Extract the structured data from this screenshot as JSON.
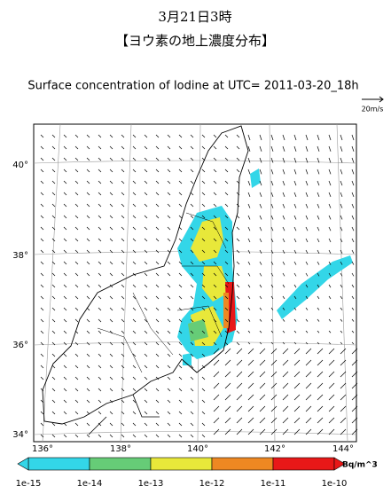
{
  "header": {
    "title": "3月21日3時",
    "subtitle": "【ヨウ素の地上濃度分布】"
  },
  "map": {
    "title": "Surface concentration of Iodine at UTC= 2011-03-20_18h",
    "wind_scale": "20m/s",
    "lat_ticks": [
      "40°",
      "38°",
      "36°",
      "34°"
    ],
    "lon_ticks": [
      "136°",
      "138°",
      "140°",
      "142°",
      "144°"
    ]
  },
  "colorbar": {
    "unit": "Bq/m^3",
    "labels": [
      "1e-15",
      "1e-14",
      "1e-13",
      "1e-12",
      "1e-11",
      "1e-10"
    ],
    "colors": [
      "#33d6e8",
      "#66cc77",
      "#e8e83a",
      "#ee8822",
      "#e81818"
    ]
  }
}
